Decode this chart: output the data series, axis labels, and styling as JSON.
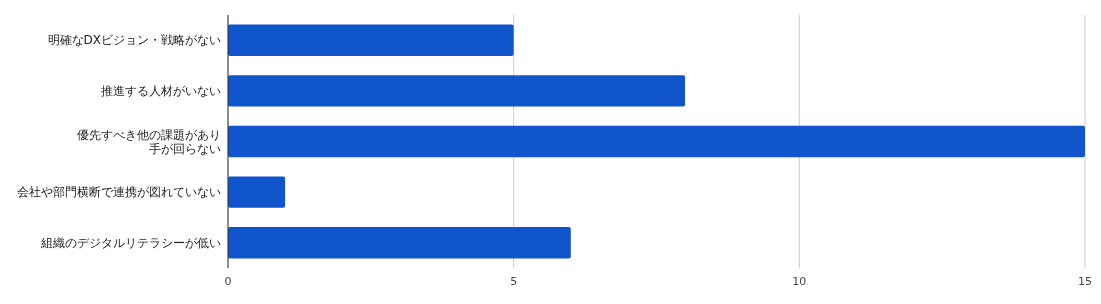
{
  "chart_data": {
    "type": "bar",
    "orientation": "horizontal",
    "categories": [
      "明確なDXビジョン・戦略がない",
      "推進する人材がいない",
      "優先すべき他の課題があり手が回らない",
      "会社や部門横断で連携が図れていない",
      "組織のデジタルリテラシーが低い"
    ],
    "values": [
      5,
      8,
      15,
      1,
      6
    ],
    "color": "#1155cc",
    "xlim": [
      0,
      15
    ],
    "xticks": [
      0,
      5,
      10,
      15
    ],
    "grid": "x"
  }
}
